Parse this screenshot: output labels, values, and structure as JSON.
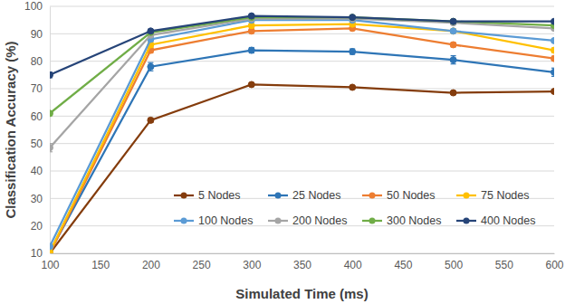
{
  "chart_data": {
    "type": "line",
    "x_label": "Simulated Time (ms)",
    "y_label": "Classification Accuracy (%)",
    "x": [
      100,
      200,
      300,
      400,
      500,
      600
    ],
    "xlim": [
      100,
      600
    ],
    "xticks": [
      100,
      150,
      200,
      250,
      300,
      350,
      400,
      450,
      500,
      550,
      600
    ],
    "ylim": [
      10,
      100
    ],
    "yticks": [
      10,
      20,
      30,
      40,
      50,
      60,
      70,
      80,
      90,
      100
    ],
    "grid": true,
    "legend": "lower right",
    "marker": "circle",
    "series": [
      {
        "name": "5 Nodes",
        "color": "#843c0c",
        "values": [
          10,
          58.5,
          71.5,
          70.5,
          68.5,
          69
        ],
        "errors": [
          0.5,
          0.8,
          0.6,
          0.6,
          0.6,
          0.6
        ]
      },
      {
        "name": "25 Nodes",
        "color": "#2e75b6",
        "values": [
          10.5,
          78,
          84,
          83.5,
          80.5,
          76
        ],
        "errors": [
          0.5,
          1.5,
          1,
          1,
          1.5,
          1.5
        ]
      },
      {
        "name": "50 Nodes",
        "color": "#ed7d31",
        "values": [
          10,
          84,
          91,
          92,
          86,
          81
        ],
        "errors": [
          0.5,
          1,
          0.8,
          0.8,
          0.8,
          0.8
        ]
      },
      {
        "name": "75 Nodes",
        "color": "#ffc000",
        "values": [
          10.5,
          86,
          93,
          93.5,
          91,
          84
        ],
        "errors": [
          0.5,
          1,
          0.6,
          0.6,
          0.6,
          0.8
        ]
      },
      {
        "name": "100 Nodes",
        "color": "#5b9bd5",
        "values": [
          12.5,
          88,
          95,
          95,
          91,
          87.5
        ],
        "errors": [
          0.6,
          0.8,
          0.5,
          0.5,
          0.6,
          0.6
        ]
      },
      {
        "name": "200 Nodes",
        "color": "#a5a5a5",
        "values": [
          48.5,
          89.5,
          95.5,
          95.5,
          94,
          92
        ],
        "errors": [
          1.5,
          0.6,
          0.4,
          0.4,
          0.5,
          0.5
        ]
      },
      {
        "name": "300 Nodes",
        "color": "#70ad47",
        "values": [
          61,
          90.5,
          96,
          96,
          94.5,
          93
        ],
        "errors": [
          0.8,
          0.5,
          0.4,
          0.4,
          0.4,
          0.4
        ]
      },
      {
        "name": "400 Nodes",
        "color": "#264478",
        "values": [
          75,
          91,
          96.5,
          96,
          94.5,
          94.5
        ],
        "errors": [
          1,
          0.5,
          0.4,
          0.4,
          0.4,
          0.4
        ]
      }
    ]
  }
}
